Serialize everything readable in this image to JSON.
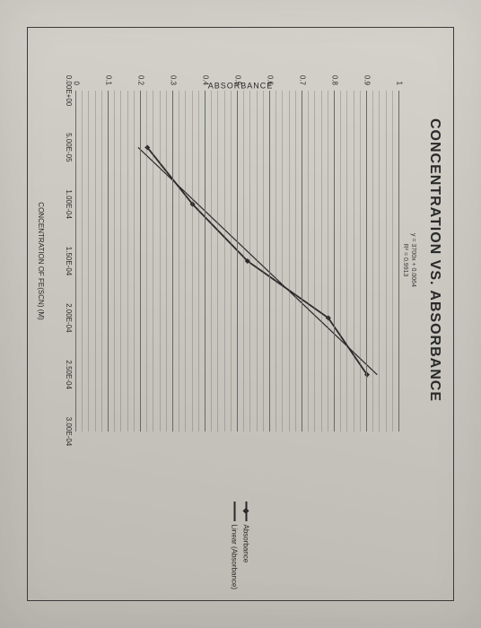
{
  "chart": {
    "type": "scatter-line",
    "title": "CONCENTRATION VS. ABSORBANCE",
    "equation_line1": "y = 3700x + 0.0064",
    "equation_line2": "R² = 0.9913",
    "y_axis_title": "ABSORBANCE",
    "x_axis_title": "CONCENTRATION OF FE(SCN) (M)",
    "title_fontsize": 16,
    "label_fontsize": 8,
    "background_color": "#cac6c0",
    "grid_color": "#6a6864",
    "grid_minor_color": "rgba(106,104,100,0.35)",
    "line_color": "#2a2a2a",
    "marker_color": "#2a2a2a",
    "marker_shape": "diamond",
    "marker_size": 6,
    "line_width": 1.8,
    "ylim": [
      0,
      1
    ],
    "xlim": [
      0,
      0.0003
    ],
    "yticks": [
      0,
      0.1,
      0.2,
      0.3,
      0.4,
      0.5,
      0.6,
      0.7,
      0.8,
      0.9,
      1
    ],
    "xticks": [
      0,
      5e-05,
      0.0001,
      0.00015,
      0.0002,
      0.00025,
      0.0003
    ],
    "xtick_labels": [
      "0.00E+00",
      "5.00E-05",
      "1.00E-04",
      "1.50E-04",
      "2.00E-04",
      "2.50E-04",
      "3.00E-04"
    ],
    "ytick_labels": [
      "0",
      "0.1",
      "0.2",
      "0.3",
      "0.4",
      "0.5",
      "0.6",
      "0.7",
      "0.8",
      "0.9",
      "1"
    ],
    "minor_y_per_major": 5,
    "data_series": {
      "x": [
        5e-05,
        0.0001,
        0.00015,
        0.0002,
        0.00025
      ],
      "y": [
        0.22,
        0.36,
        0.53,
        0.78,
        0.9
      ]
    },
    "trendline": {
      "slope": 3700,
      "intercept": 0.0064,
      "x_start": 5e-05,
      "x_end": 0.00025
    },
    "legend": {
      "items": [
        {
          "label": "Absorbance",
          "marker": true
        },
        {
          "label": "Linear (Absorbance)",
          "marker": false
        }
      ]
    }
  }
}
